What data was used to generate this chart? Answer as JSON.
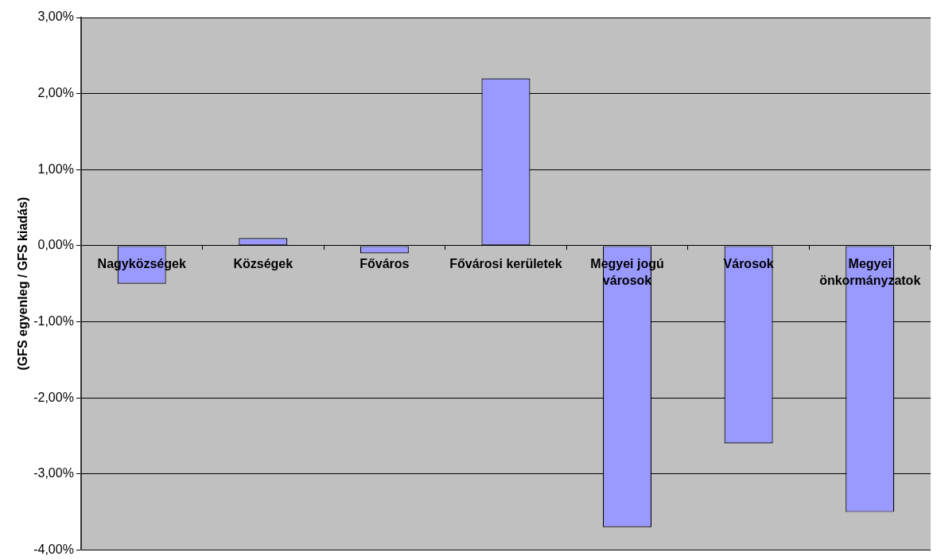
{
  "chart_data": {
    "type": "bar",
    "ylabel": "(GFS egyenleg / GFS kiadás)",
    "categories": [
      "Nagyközségek",
      "Községek",
      "Főváros",
      "Fővárosi kerületek",
      "Megyei jogú városok",
      "Városok",
      "Megyei önkormányzatok"
    ],
    "values": [
      -0.5,
      0.1,
      -0.1,
      2.2,
      -3.7,
      -2.6,
      -3.5
    ],
    "color": "#9999ff",
    "ylim": [
      -4,
      3
    ],
    "yticks": [
      {
        "value": -4,
        "label": "-4,00%"
      },
      {
        "value": -3,
        "label": "-3,00%"
      },
      {
        "value": -2,
        "label": "-2,00%"
      },
      {
        "value": -1,
        "label": "-1,00%"
      },
      {
        "value": 0,
        "label": "0,00%"
      },
      {
        "value": 1,
        "label": "1,00%"
      },
      {
        "value": 2,
        "label": "2,00%"
      },
      {
        "value": 3,
        "label": "3,00%"
      }
    ],
    "grid": "y"
  }
}
